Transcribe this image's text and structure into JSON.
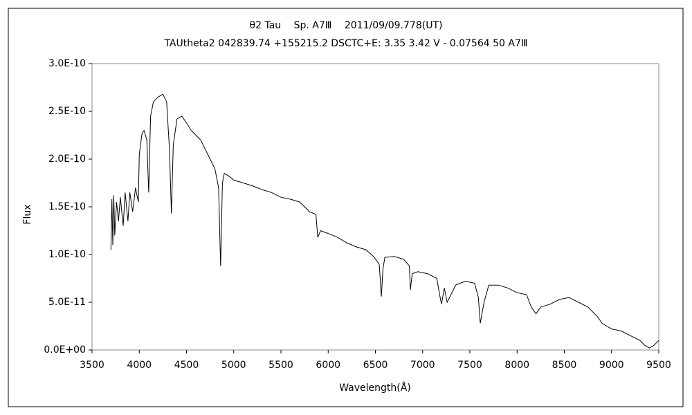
{
  "chart_data": {
    "type": "line",
    "title": "θ2 Tau　 Sp. A7Ⅲ　 2011/09/09.778(UT)",
    "subtitle": "TAUtheta2 042839.74 +155215.2 DSCTC+E: 3.35 3.42 V - 0.07564 50 A7Ⅲ",
    "x_label": "Wavelength(Å)",
    "y_label": "Flux",
    "xlim": [
      3500,
      9500
    ],
    "xticks": [
      3500,
      4000,
      4500,
      5000,
      5500,
      6000,
      6500,
      7000,
      7500,
      8000,
      8500,
      9000,
      9500
    ],
    "ylim": [
      0,
      3e-10
    ],
    "yticks": [
      {
        "value": 0,
        "label": "0.0E+00"
      },
      {
        "value": 5e-11,
        "label": "5.0E-11"
      },
      {
        "value": 1e-10,
        "label": "1.0E-10"
      },
      {
        "value": 1.5e-10,
        "label": "1.5E-10"
      },
      {
        "value": 2e-10,
        "label": "2.0E-10"
      },
      {
        "value": 2.5e-10,
        "label": "2.5E-10"
      },
      {
        "value": 3e-10,
        "label": "3.0E-10"
      }
    ],
    "series": [
      {
        "color": "#000000",
        "x": [
          3700,
          3710,
          3720,
          3730,
          3740,
          3760,
          3780,
          3800,
          3830,
          3850,
          3880,
          3900,
          3930,
          3960,
          3990,
          4000,
          4030,
          4050,
          4080,
          4100,
          4120,
          4150,
          4200,
          4250,
          4290,
          4320,
          4340,
          4360,
          4400,
          4450,
          4500,
          4550,
          4600,
          4650,
          4700,
          4750,
          4800,
          4840,
          4861,
          4880,
          4900,
          4950,
          5000,
          5100,
          5200,
          5300,
          5400,
          5500,
          5600,
          5700,
          5800,
          5870,
          5890,
          5920,
          6000,
          6100,
          6200,
          6300,
          6400,
          6480,
          6540,
          6563,
          6580,
          6600,
          6700,
          6800,
          6860,
          6870,
          6890,
          6950,
          7050,
          7150,
          7180,
          7200,
          7230,
          7260,
          7300,
          7350,
          7450,
          7550,
          7590,
          7610,
          7650,
          7700,
          7800,
          7900,
          8000,
          8100,
          8150,
          8200,
          8250,
          8350,
          8450,
          8550,
          8650,
          8750,
          8850,
          8900,
          8950,
          9000,
          9100,
          9200,
          9300,
          9350,
          9400,
          9450,
          9500
        ],
        "values": [
          1.05e-10,
          1.58e-10,
          1.1e-10,
          1.62e-10,
          1.2e-10,
          1.55e-10,
          1.35e-10,
          1.6e-10,
          1.3e-10,
          1.65e-10,
          1.35e-10,
          1.65e-10,
          1.45e-10,
          1.7e-10,
          1.55e-10,
          2.05e-10,
          2.27e-10,
          2.3e-10,
          2.2e-10,
          1.65e-10,
          2.45e-10,
          2.6e-10,
          2.65e-10,
          2.68e-10,
          2.6e-10,
          2.1e-10,
          1.43e-10,
          2.15e-10,
          2.42e-10,
          2.45e-10,
          2.38e-10,
          2.3e-10,
          2.25e-10,
          2.2e-10,
          2.1e-10,
          2e-10,
          1.9e-10,
          1.7e-10,
          8.8e-11,
          1.75e-10,
          1.85e-10,
          1.82e-10,
          1.78e-10,
          1.75e-10,
          1.72e-10,
          1.68e-10,
          1.65e-10,
          1.6e-10,
          1.58e-10,
          1.55e-10,
          1.45e-10,
          1.42e-10,
          1.18e-10,
          1.25e-10,
          1.22e-10,
          1.18e-10,
          1.12e-10,
          1.08e-10,
          1.05e-10,
          9.8e-11,
          9e-11,
          5.6e-11,
          8.5e-11,
          9.7e-11,
          9.8e-11,
          9.5e-11,
          8.8e-11,
          6.3e-11,
          8e-11,
          8.2e-11,
          8e-11,
          7.5e-11,
          5.8e-11,
          4.8e-11,
          6.5e-11,
          5e-11,
          5.8e-11,
          6.8e-11,
          7.2e-11,
          7e-11,
          5.5e-11,
          2.8e-11,
          5e-11,
          6.8e-11,
          6.8e-11,
          6.5e-11,
          6e-11,
          5.8e-11,
          4.5e-11,
          3.8e-11,
          4.5e-11,
          4.8e-11,
          5.3e-11,
          5.5e-11,
          5e-11,
          4.5e-11,
          3.5e-11,
          2.8e-11,
          2.5e-11,
          2.2e-11,
          2e-11,
          1.5e-11,
          1e-11,
          5e-12,
          2e-12,
          5e-12,
          1e-11
        ]
      }
    ]
  }
}
